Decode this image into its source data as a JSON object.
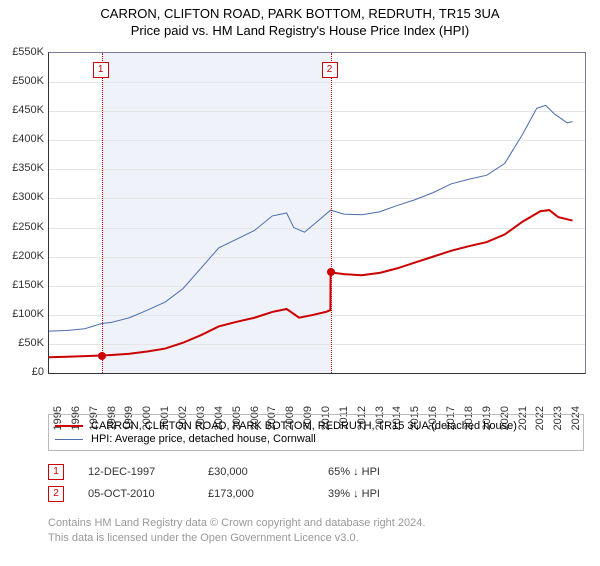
{
  "title": "CARRON, CLIFTON ROAD, PARK BOTTOM, REDRUTH, TR15 3UA",
  "subtitle": "Price paid vs. HM Land Registry's House Price Index (HPI)",
  "chart": {
    "type": "line",
    "background_color": "#ffffff",
    "grid_color": "#e5e5e5",
    "axis_color": "#333333",
    "x_years": [
      1995,
      1996,
      1997,
      1998,
      1999,
      2000,
      2001,
      2002,
      2003,
      2004,
      2005,
      2006,
      2007,
      2008,
      2009,
      2010,
      2011,
      2012,
      2013,
      2014,
      2015,
      2016,
      2017,
      2018,
      2019,
      2020,
      2021,
      2022,
      2023,
      2024
    ],
    "x_min": 1995,
    "x_max": 2025,
    "y_min": 0,
    "y_max": 550000,
    "y_ticks": [
      0,
      50000,
      100000,
      150000,
      200000,
      250000,
      300000,
      350000,
      400000,
      450000,
      500000,
      550000
    ],
    "y_tick_labels": [
      "£0",
      "£50K",
      "£100K",
      "£150K",
      "£200K",
      "£250K",
      "£300K",
      "£350K",
      "£400K",
      "£450K",
      "£500K",
      "£550K"
    ],
    "shade_start_year": 1997.95,
    "shade_end_year": 2010.76,
    "events": [
      {
        "n": "1",
        "year": 1997.95,
        "date": "12-DEC-1997",
        "price": "£30,000",
        "rel": "65% ↓ HPI",
        "price_val": 30000
      },
      {
        "n": "2",
        "year": 2010.76,
        "date": "05-OCT-2010",
        "price": "£173,000",
        "rel": "39% ↓ HPI",
        "price_val": 173000
      }
    ],
    "series": [
      {
        "name": "CARRON, CLIFTON ROAD, PARK BOTTOM, REDRUTH, TR15 3UA (detached house)",
        "color": "#cc0000",
        "line_width": 2,
        "points": [
          [
            1995.0,
            27000
          ],
          [
            1996.0,
            28000
          ],
          [
            1997.0,
            29000
          ],
          [
            1997.95,
            30000
          ],
          [
            1998.5,
            31000
          ],
          [
            1999.5,
            33000
          ],
          [
            2000.5,
            37000
          ],
          [
            2001.5,
            42000
          ],
          [
            2002.5,
            52000
          ],
          [
            2003.5,
            65000
          ],
          [
            2004.5,
            80000
          ],
          [
            2005.5,
            88000
          ],
          [
            2006.5,
            95000
          ],
          [
            2007.5,
            105000
          ],
          [
            2008.3,
            110000
          ],
          [
            2009.0,
            95000
          ],
          [
            2009.8,
            100000
          ],
          [
            2010.5,
            105000
          ],
          [
            2010.75,
            108000
          ],
          [
            2010.76,
            173000
          ],
          [
            2011.5,
            170000
          ],
          [
            2012.5,
            168000
          ],
          [
            2013.5,
            172000
          ],
          [
            2014.5,
            180000
          ],
          [
            2015.5,
            190000
          ],
          [
            2016.5,
            200000
          ],
          [
            2017.5,
            210000
          ],
          [
            2018.5,
            218000
          ],
          [
            2019.5,
            225000
          ],
          [
            2020.5,
            238000
          ],
          [
            2021.5,
            260000
          ],
          [
            2022.5,
            278000
          ],
          [
            2023.0,
            280000
          ],
          [
            2023.5,
            268000
          ],
          [
            2024.3,
            262000
          ]
        ]
      },
      {
        "name": "HPI: Average price, detached house, Cornwall",
        "color": "#4a6db0",
        "line_width": 1,
        "points": [
          [
            1995.0,
            72000
          ],
          [
            1996.0,
            73000
          ],
          [
            1997.0,
            76000
          ],
          [
            1997.95,
            85000
          ],
          [
            1998.5,
            87000
          ],
          [
            1999.5,
            95000
          ],
          [
            2000.5,
            108000
          ],
          [
            2001.5,
            122000
          ],
          [
            2002.5,
            145000
          ],
          [
            2003.5,
            180000
          ],
          [
            2004.5,
            215000
          ],
          [
            2005.5,
            230000
          ],
          [
            2006.5,
            245000
          ],
          [
            2007.5,
            270000
          ],
          [
            2008.3,
            275000
          ],
          [
            2008.7,
            250000
          ],
          [
            2009.3,
            242000
          ],
          [
            2010.0,
            260000
          ],
          [
            2010.76,
            280000
          ],
          [
            2011.5,
            273000
          ],
          [
            2012.5,
            272000
          ],
          [
            2013.5,
            277000
          ],
          [
            2014.5,
            288000
          ],
          [
            2015.5,
            298000
          ],
          [
            2016.5,
            310000
          ],
          [
            2017.5,
            325000
          ],
          [
            2018.5,
            333000
          ],
          [
            2019.5,
            340000
          ],
          [
            2020.5,
            360000
          ],
          [
            2021.5,
            410000
          ],
          [
            2022.3,
            455000
          ],
          [
            2022.8,
            460000
          ],
          [
            2023.3,
            445000
          ],
          [
            2024.0,
            430000
          ],
          [
            2024.3,
            432000
          ]
        ]
      }
    ]
  },
  "legend": {
    "label1": "CARRON, CLIFTON ROAD, PARK BOTTOM, REDRUTH, TR15 3UA (detached house)",
    "label2": "HPI: Average price, detached house, Cornwall"
  },
  "footer": {
    "line1": "Contains HM Land Registry data © Crown copyright and database right 2024.",
    "line2": "This data is licensed under the Open Government Licence v3.0."
  }
}
